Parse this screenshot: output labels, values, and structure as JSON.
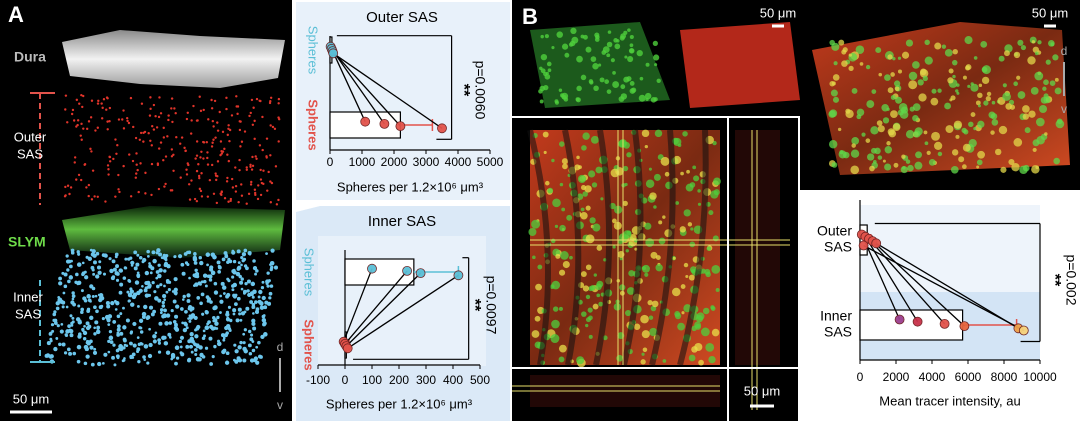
{
  "panel_a": {
    "label": "A",
    "dura": "Dura",
    "outer_sas": [
      "Outer",
      "SAS"
    ],
    "slym": "SLYM",
    "inner_sas": [
      "Inner",
      "SAS"
    ],
    "scale_bar": "50 μm",
    "axis": [
      "d",
      "v"
    ]
  },
  "panel_b": {
    "label": "B",
    "scale_bars": [
      "50 μm",
      "50 μm",
      "50 μm"
    ],
    "axis": [
      "d",
      "v"
    ]
  },
  "chart_data": [
    {
      "type": "paired_dot_bar",
      "title": "Outer  SAS",
      "xlabel": "Spheres per 1.2×10⁶ μm³",
      "categories": [
        "Spheres",
        "Spheres"
      ],
      "category_colors": [
        "#5bbfd6",
        "#e2534b"
      ],
      "values": [
        [
          20,
          50,
          80,
          100
        ],
        [
          1100,
          1700,
          2200,
          3500
        ]
      ],
      "means": [
        60,
        2200
      ],
      "errors": [
        30,
        1000
      ],
      "xlim": [
        0,
        5000
      ],
      "xticks": [
        0,
        1000,
        2000,
        3000,
        4000,
        5000
      ],
      "annotation": "**",
      "p_label": "p=0.0060"
    },
    {
      "type": "paired_dot_bar",
      "title": "Inner  SAS",
      "xlabel": "Spheres per 1.2×10⁶ μm³",
      "categories": [
        "Spheres",
        "Spheres"
      ],
      "category_colors": [
        "#5bbfd6",
        "#e2534b"
      ],
      "values": [
        [
          100,
          230,
          280,
          420
        ],
        [
          -5,
          0,
          5,
          10
        ]
      ],
      "means": [
        255,
        5
      ],
      "errors": [
        165,
        10
      ],
      "xlim": [
        -100,
        500
      ],
      "xticks": [
        -100,
        0,
        100,
        200,
        300,
        400,
        500
      ],
      "annotation": "**",
      "p_label": "p=0.0097"
    },
    {
      "type": "paired_dot_bar",
      "xlabel": "Mean tracer intensity, au",
      "categories": [
        [
          "Outer",
          "SAS"
        ],
        [
          "Inner",
          "SAS"
        ]
      ],
      "category_colors": [
        "#e2534b",
        "#e2534b"
      ],
      "point_colors": [
        "#9b3f8f",
        "#c8324a",
        "#e2534b",
        "#e8663f",
        "#f0a24a",
        "#f6d27a"
      ],
      "values": [
        [
          100,
          300,
          500,
          700,
          900,
          200
        ],
        [
          2200,
          3200,
          4700,
          5800,
          8800,
          9100
        ]
      ],
      "means": [
        400,
        5700
      ],
      "errors": [
        200,
        3000
      ],
      "xlim": [
        0,
        10000
      ],
      "xticks": [
        0,
        2000,
        4000,
        6000,
        8000,
        10000
      ],
      "annotation": "**",
      "p_label": "p=0.002"
    }
  ]
}
